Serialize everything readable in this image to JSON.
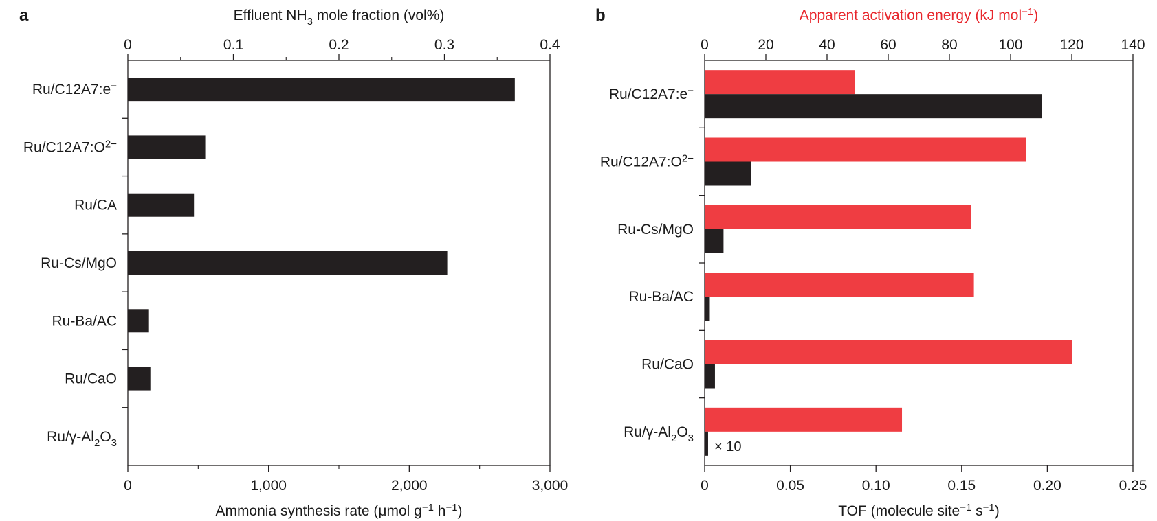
{
  "colors": {
    "black_series": "#231f20",
    "red_series": "#ef3d42",
    "axis": "#231f20",
    "red_axis_title": "#e8262c"
  },
  "chart_data": [
    {
      "panel": "a",
      "type": "bar",
      "orientation": "horizontal",
      "categories": [
        "Ru/C12A7:e⁻",
        "Ru/C12A7:O²⁻",
        "Ru/CA",
        "Ru-Cs/MgO",
        "Ru-Ba/AC",
        "Ru/CaO",
        "Ru/γ-Al₂O₃"
      ],
      "series": [
        {
          "values": [
            2750,
            550,
            470,
            2270,
            150,
            160,
            0
          ],
          "color": "#231f20"
        }
      ],
      "xlabel": "Ammonia synthesis rate (μmol g⁻¹ h⁻¹)",
      "xlim": [
        0,
        3000
      ],
      "x_ticks": [
        "0",
        "1,000",
        "2,000",
        "3,000"
      ],
      "x2label": "Effluent NH₃ mole fraction (vol%)",
      "x2lim": [
        0,
        0.4
      ],
      "x2_ticks": [
        "0",
        "0.1",
        "0.2",
        "0.3",
        "0.4"
      ],
      "grid": false
    },
    {
      "panel": "b",
      "type": "bar",
      "orientation": "horizontal",
      "categories": [
        "Ru/C12A7:e⁻",
        "Ru/C12A7:O²⁻",
        "Ru-Cs/MgO",
        "Ru-Ba/AC",
        "Ru/CaO",
        "Ru/γ-Al₂O₃"
      ],
      "series": [
        {
          "axis": "top",
          "values": [
            49,
            105,
            87,
            88,
            120,
            64.5
          ],
          "color": "#ef3d42"
        },
        {
          "axis": "bottom",
          "values": [
            0.197,
            0.027,
            0.011,
            0.003,
            0.006,
            0.002
          ],
          "color": "#231f20"
        }
      ],
      "xlabel": "TOF (molecule site⁻¹ s⁻¹)",
      "xlim": [
        0,
        0.25
      ],
      "x_ticks": [
        "0",
        "0.05",
        "0.10",
        "0.15",
        "0.20",
        "0.25"
      ],
      "x2label": "Apparent activation energy (kJ mol⁻¹)",
      "x2lim": [
        0,
        140
      ],
      "x2_ticks": [
        "0",
        "20",
        "40",
        "60",
        "80",
        "100",
        "120",
        "140"
      ],
      "annotation": "× 10",
      "grid": false
    }
  ]
}
